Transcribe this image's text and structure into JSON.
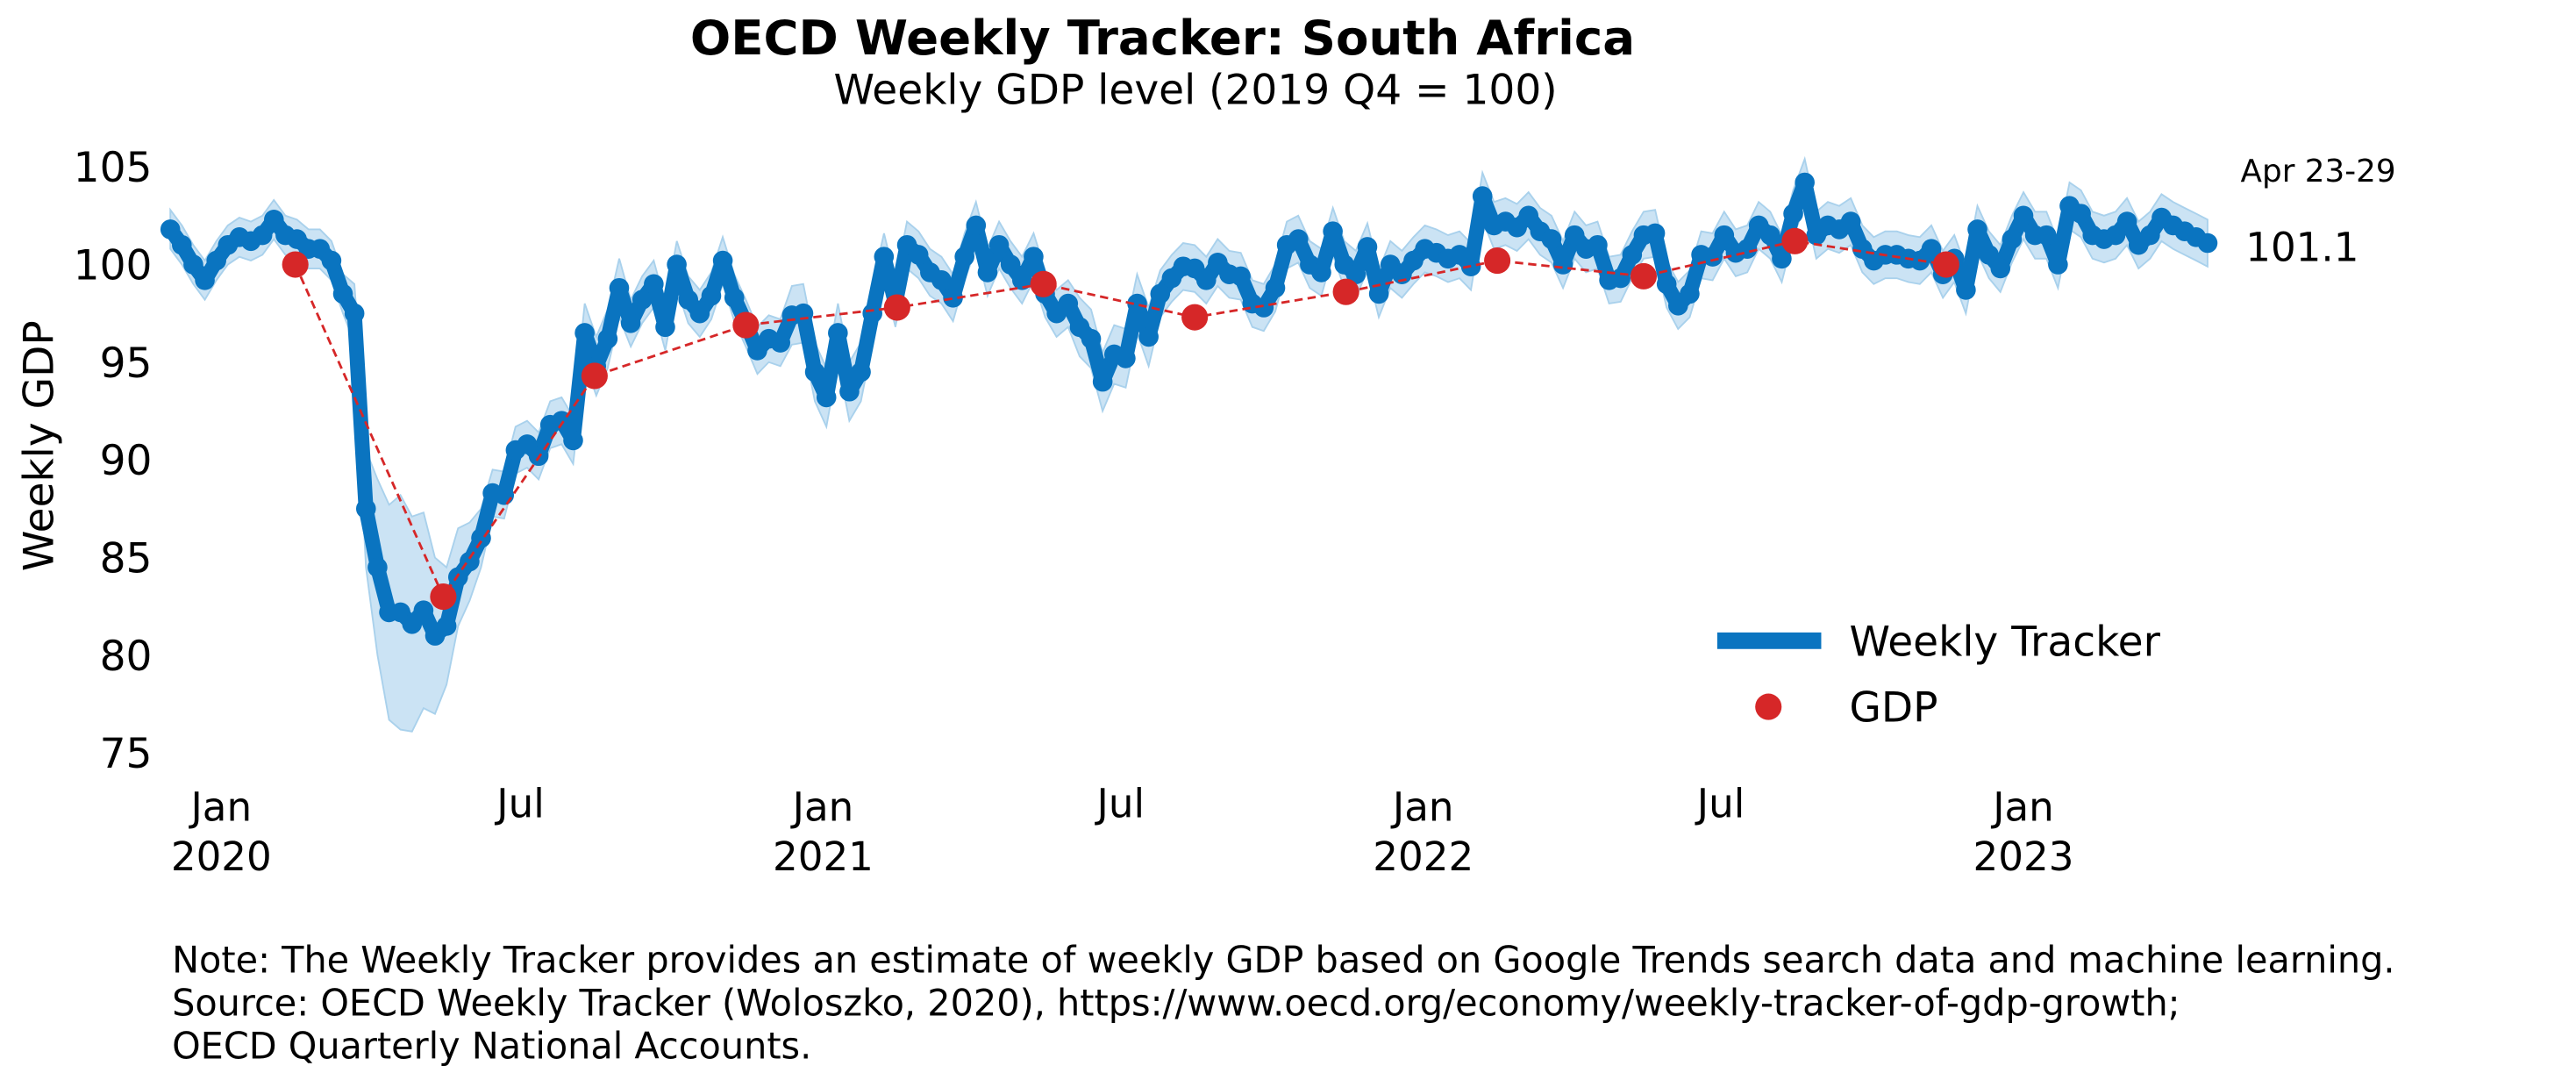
{
  "chart_data": {
    "type": "line",
    "title": "OECD Weekly Tracker: South Africa",
    "subtitle": "Weekly GDP level (2019 Q4 = 100)",
    "ylabel": "Weekly GDP",
    "x": [
      "2019-12-01",
      "2019-12-08",
      "2019-12-15",
      "2019-12-22",
      "2019-12-29",
      "2020-01-05",
      "2020-01-12",
      "2020-01-19",
      "2020-01-26",
      "2020-02-02",
      "2020-02-09",
      "2020-02-16",
      "2020-02-23",
      "2020-03-01",
      "2020-03-08",
      "2020-03-15",
      "2020-03-22",
      "2020-03-29",
      "2020-04-05",
      "2020-04-12",
      "2020-04-19",
      "2020-04-26",
      "2020-05-03",
      "2020-05-10",
      "2020-05-17",
      "2020-05-24",
      "2020-05-31",
      "2020-06-07",
      "2020-06-14",
      "2020-06-21",
      "2020-06-28",
      "2020-07-05",
      "2020-07-12",
      "2020-07-19",
      "2020-07-26",
      "2020-08-02",
      "2020-08-09",
      "2020-08-16",
      "2020-08-23",
      "2020-08-30",
      "2020-09-06",
      "2020-09-13",
      "2020-09-20",
      "2020-09-27",
      "2020-10-04",
      "2020-10-11",
      "2020-10-18",
      "2020-10-25",
      "2020-11-01",
      "2020-11-08",
      "2020-11-15",
      "2020-11-22",
      "2020-11-29",
      "2020-12-06",
      "2020-12-13",
      "2020-12-20",
      "2020-12-27",
      "2021-01-03",
      "2021-01-10",
      "2021-01-17",
      "2021-01-24",
      "2021-01-31",
      "2021-02-07",
      "2021-02-14",
      "2021-02-21",
      "2021-02-28",
      "2021-03-07",
      "2021-03-14",
      "2021-03-21",
      "2021-03-28",
      "2021-04-04",
      "2021-04-11",
      "2021-04-18",
      "2021-04-25",
      "2021-05-02",
      "2021-05-09",
      "2021-05-16",
      "2021-05-23",
      "2021-05-30",
      "2021-06-06",
      "2021-06-13",
      "2021-06-20",
      "2021-06-27",
      "2021-07-04",
      "2021-07-11",
      "2021-07-18",
      "2021-07-25",
      "2021-08-01",
      "2021-08-08",
      "2021-08-15",
      "2021-08-22",
      "2021-08-29",
      "2021-09-05",
      "2021-09-12",
      "2021-09-19",
      "2021-09-26",
      "2021-10-03",
      "2021-10-10",
      "2021-10-17",
      "2021-10-24",
      "2021-10-31",
      "2021-11-07",
      "2021-11-14",
      "2021-11-21",
      "2021-11-28",
      "2021-12-05",
      "2021-12-12",
      "2021-12-19",
      "2021-12-26",
      "2022-01-02",
      "2022-01-09",
      "2022-01-16",
      "2022-01-23",
      "2022-01-30",
      "2022-02-06",
      "2022-02-13",
      "2022-02-20",
      "2022-02-27",
      "2022-03-06",
      "2022-03-13",
      "2022-03-20",
      "2022-03-27",
      "2022-04-03",
      "2022-04-10",
      "2022-04-17",
      "2022-04-24",
      "2022-05-01",
      "2022-05-08",
      "2022-05-15",
      "2022-05-22",
      "2022-05-29",
      "2022-06-05",
      "2022-06-12",
      "2022-06-19",
      "2022-06-26",
      "2022-07-03",
      "2022-07-10",
      "2022-07-17",
      "2022-07-24",
      "2022-07-31",
      "2022-08-07",
      "2022-08-14",
      "2022-08-21",
      "2022-08-28",
      "2022-09-04",
      "2022-09-11",
      "2022-09-18",
      "2022-09-25",
      "2022-10-02",
      "2022-10-09",
      "2022-10-16",
      "2022-10-23",
      "2022-10-30",
      "2022-11-06",
      "2022-11-13",
      "2022-11-20",
      "2022-11-27",
      "2022-12-04",
      "2022-12-11",
      "2022-12-18",
      "2022-12-25",
      "2023-01-01",
      "2023-01-08",
      "2023-01-15",
      "2023-01-22",
      "2023-01-29",
      "2023-02-05",
      "2023-02-12",
      "2023-02-19",
      "2023-02-26",
      "2023-03-05",
      "2023-03-12",
      "2023-03-19",
      "2023-03-26",
      "2023-04-02",
      "2023-04-09",
      "2023-04-16",
      "2023-04-23"
    ],
    "series": [
      {
        "name": "Weekly Tracker",
        "color": "#0a74c0",
        "band_color": "#a9d1ec",
        "values": [
          101.8,
          101,
          100,
          99.2,
          100.2,
          101,
          101.4,
          101.2,
          101.5,
          102.3,
          101.5,
          101.3,
          100.8,
          100.8,
          100.2,
          98.5,
          97.5,
          87.5,
          84.5,
          82.2,
          82.2,
          81.6,
          82.3,
          81,
          81.5,
          84,
          84.8,
          86,
          88.3,
          88.2,
          90.5,
          90.8,
          90.2,
          91.8,
          92,
          91,
          96.5,
          94.8,
          96.2,
          98.8,
          97,
          98.2,
          99,
          96.8,
          100,
          98.2,
          97.5,
          98.4,
          100.2,
          98.3,
          97,
          95.6,
          96.2,
          96,
          97.4,
          97.5,
          94.5,
          93.2,
          96.5,
          93.5,
          94.5,
          97.5,
          100.4,
          98,
          101,
          100.5,
          99.6,
          99.2,
          98.3,
          100.4,
          102,
          99.6,
          101,
          100,
          99.2,
          100.4,
          98.5,
          97.5,
          98,
          96.8,
          96.2,
          94,
          95.4,
          95.2,
          98,
          96.3,
          98.5,
          99.3,
          99.9,
          99.8,
          99.2,
          100.1,
          99.5,
          99.4,
          98,
          97.8,
          98.8,
          101,
          101.3,
          100,
          99.6,
          101.7,
          100,
          99.5,
          100.9,
          98.5,
          100,
          99.5,
          100.2,
          100.8,
          100.6,
          100.3,
          100.5,
          99.9,
          103.5,
          102,
          102.2,
          101.9,
          102.5,
          101.7,
          101.3,
          100,
          101.5,
          100.8,
          101,
          99.2,
          99.3,
          100.5,
          101.5,
          101.6,
          99,
          97.9,
          98.5,
          100.5,
          100.4,
          101.5,
          100.6,
          100.8,
          102,
          101.5,
          100.3,
          102.6,
          104.2,
          101.5,
          102,
          101.8,
          102.2,
          100.8,
          100.2,
          100.5,
          100.5,
          100.3,
          100.2,
          100.8,
          99.5,
          100.3,
          98.7,
          101.8,
          100.5,
          99.8,
          101.3,
          102.5,
          101.5,
          101.5,
          100,
          103,
          102.6,
          101.5,
          101.3,
          101.5,
          102.2,
          101,
          101.5,
          102.4,
          102,
          101.7,
          101.4,
          101.1
        ],
        "errors": [
          1,
          1,
          1,
          1,
          1,
          1,
          1,
          1,
          1,
          1,
          1,
          1,
          1,
          1,
          1,
          1,
          1.5,
          3,
          4.5,
          5.5,
          6,
          5.5,
          5,
          4,
          3,
          2.5,
          2,
          1.5,
          1.2,
          1.2,
          1.2,
          1.2,
          1.2,
          1.2,
          1.2,
          1.2,
          1.5,
          1.5,
          1.5,
          1.5,
          1.2,
          1.2,
          1.2,
          1.2,
          1.2,
          1.2,
          1.2,
          1.2,
          1.2,
          1.2,
          1.2,
          1.2,
          1.2,
          1.2,
          1.5,
          1.5,
          1.5,
          1.5,
          1.5,
          1.5,
          1.5,
          1.5,
          1.2,
          1.2,
          1.2,
          1.2,
          1.2,
          1.2,
          1.2,
          1.2,
          1.2,
          1.2,
          1.2,
          1.2,
          1.2,
          1.2,
          1.2,
          1.2,
          1.2,
          1.5,
          1.5,
          1.5,
          1.5,
          1.5,
          1.5,
          1.5,
          1.2,
          1.2,
          1.2,
          1.2,
          1.2,
          1.2,
          1.2,
          1.2,
          1.2,
          1.2,
          1.2,
          1.2,
          1.2,
          1.2,
          1.2,
          1.2,
          1.2,
          1.2,
          1.2,
          1.2,
          1.2,
          1.2,
          1.2,
          1.2,
          1.2,
          1.2,
          1.2,
          1.2,
          1.2,
          1.2,
          1.2,
          1.2,
          1.2,
          1.2,
          1.2,
          1.2,
          1.2,
          1.2,
          1.2,
          1.2,
          1.2,
          1.2,
          1.2,
          1.2,
          1.2,
          1.2,
          1.2,
          1.2,
          1.2,
          1.2,
          1.2,
          1.2,
          1.2,
          1.2,
          1.2,
          1.2,
          1.2,
          1.2,
          1.2,
          1.2,
          1.2,
          1.2,
          1.2,
          1.2,
          1.2,
          1.2,
          1.2,
          1.2,
          1.2,
          1.2,
          1.2,
          1.2,
          1.2,
          1.2,
          1.2,
          1.2,
          1.2,
          1.2,
          1.2,
          1.2,
          1.2,
          1.2,
          1.2,
          1.2,
          1.2,
          1.2,
          1.2,
          1.2,
          1.2,
          1.2,
          1.2,
          1.2
        ]
      },
      {
        "name": "GDP",
        "color": "#d62728",
        "x": [
          "2020-02-15",
          "2020-05-15",
          "2020-08-15",
          "2020-11-15",
          "2021-02-15",
          "2021-05-15",
          "2021-08-15",
          "2021-11-15",
          "2022-02-15",
          "2022-05-15",
          "2022-08-15",
          "2022-11-15"
        ],
        "values": [
          100,
          83,
          94.3,
          96.9,
          97.8,
          99,
          97.3,
          98.6,
          100.2,
          99.4,
          101.2,
          100
        ]
      }
    ],
    "xlim": [
      "2019-11-28",
      "2023-05-01"
    ],
    "ylim": [
      74,
      106
    ],
    "yticks": [
      75,
      80,
      85,
      90,
      95,
      100,
      105
    ],
    "xticks": [
      {
        "value": "2020-01-01",
        "label": "Jan",
        "year": "2020"
      },
      {
        "value": "2020-07-01",
        "label": "Jul"
      },
      {
        "value": "2021-01-01",
        "label": "Jan",
        "year": "2021"
      },
      {
        "value": "2021-07-01",
        "label": "Jul"
      },
      {
        "value": "2022-01-01",
        "label": "Jan",
        "year": "2022"
      },
      {
        "value": "2022-07-01",
        "label": "Jul"
      },
      {
        "value": "2023-01-01",
        "label": "Jan",
        "year": "2023"
      }
    ],
    "last_period": "Apr 23-29",
    "last_value_label": "101.1",
    "legend": "lower right",
    "notes": [
      "Note: The Weekly Tracker provides an estimate of weekly GDP based on Google Trends search data and machine learning.",
      "Source: OECD Weekly Tracker (Woloszko, 2020), https://www.oecd.org/economy/weekly-tracker-of-gdp-growth;",
      "OECD Quarterly National Accounts."
    ]
  }
}
